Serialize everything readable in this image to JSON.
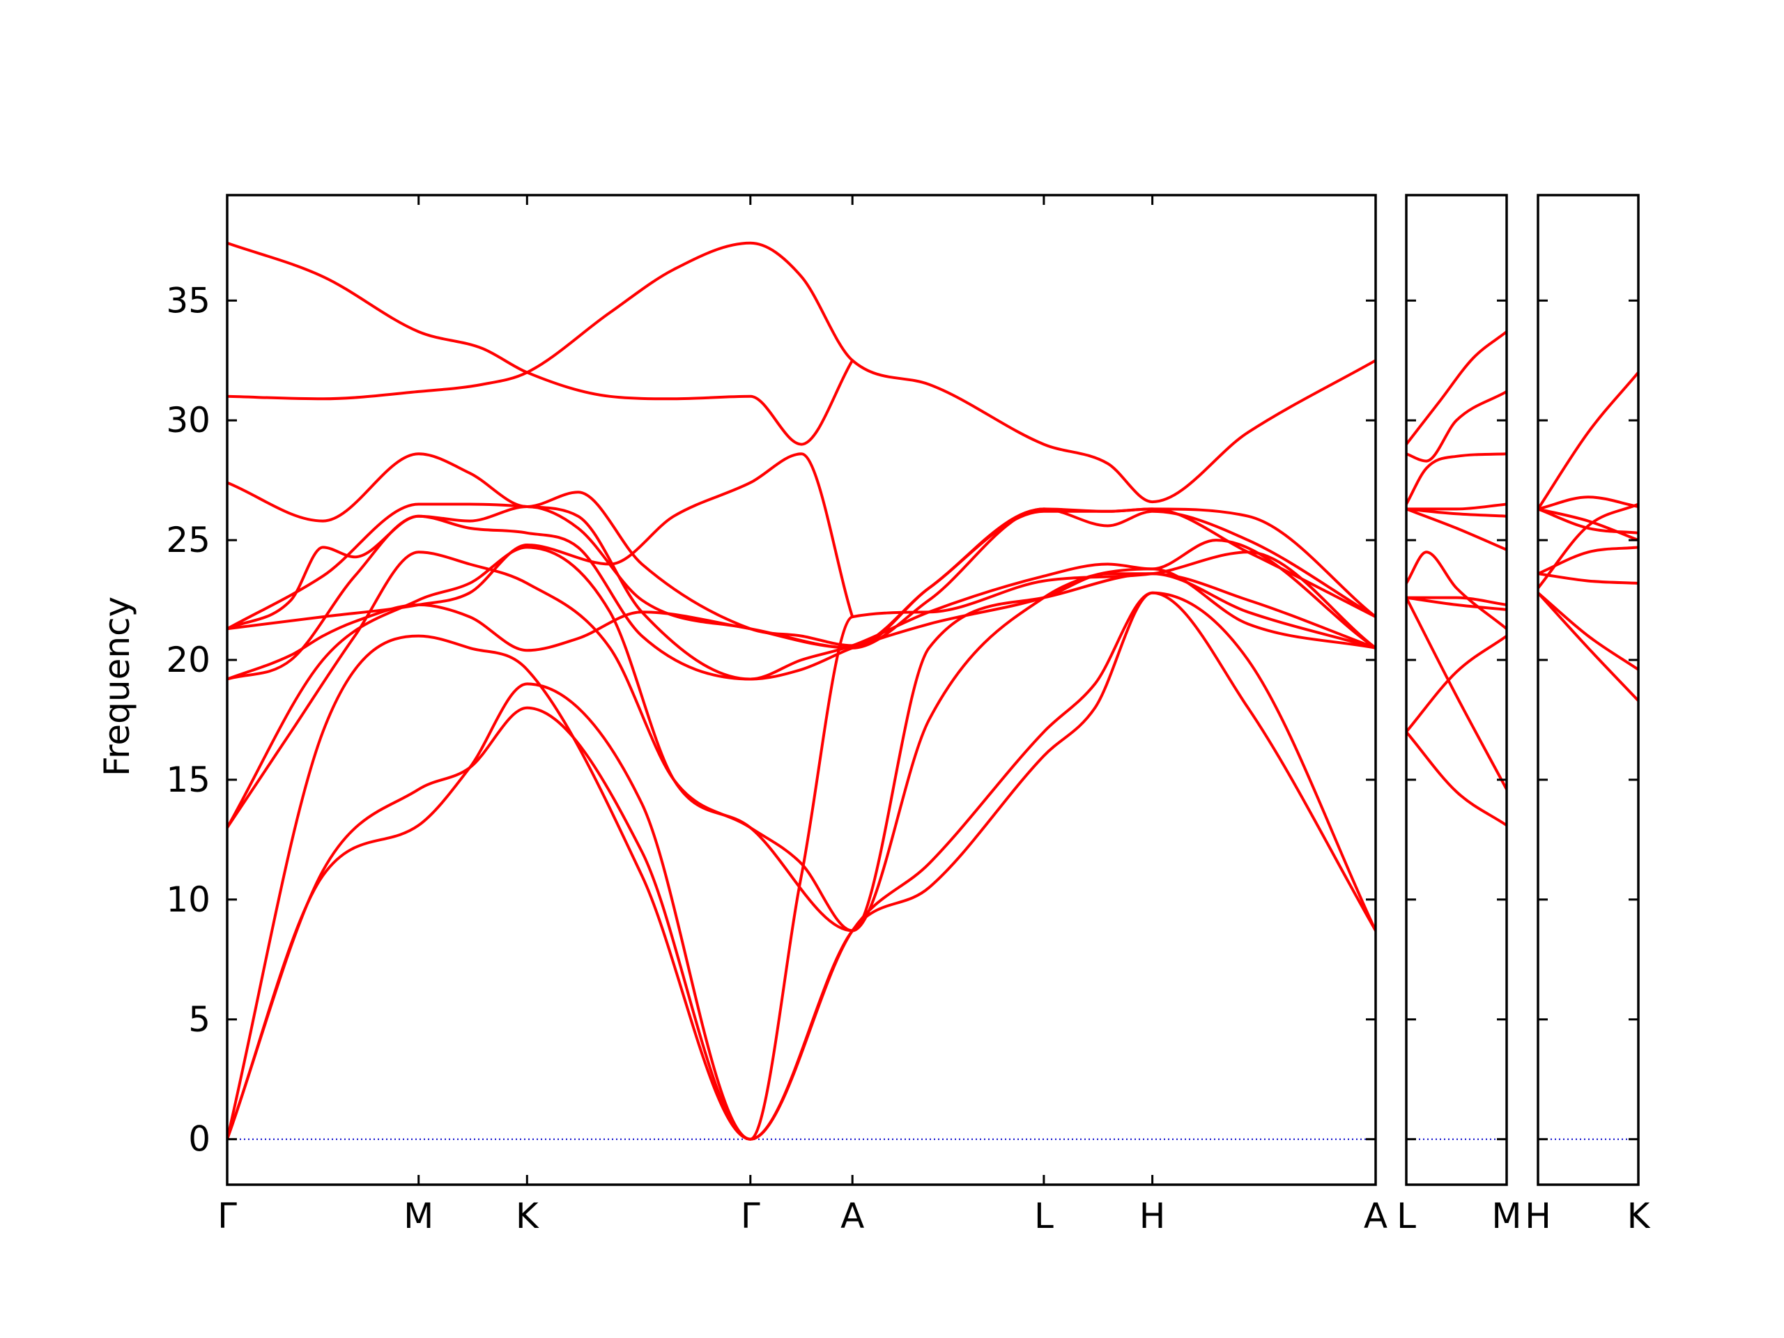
{
  "chart_data": {
    "type": "line",
    "title": "",
    "xlabel": "",
    "ylabel": "Frequency",
    "ylim": [
      -1.9,
      39.4
    ],
    "yticks": [
      0,
      5,
      10,
      15,
      20,
      25,
      30,
      35
    ],
    "grid": false,
    "legend": "none",
    "line_color": "#ff0000",
    "zero_line_color": "#0000cc",
    "panels": [
      {
        "name": "main",
        "x_range": [
          0,
          1.8
        ],
        "kpoints": [
          {
            "label": "Γ",
            "x": 0.0
          },
          {
            "label": "M",
            "x": 0.3
          },
          {
            "label": "K",
            "x": 0.47
          },
          {
            "label": "Γ",
            "x": 0.82
          },
          {
            "label": "A",
            "x": 0.98
          },
          {
            "label": "L",
            "x": 1.28
          },
          {
            "label": "H",
            "x": 1.45
          },
          {
            "label": "A",
            "x": 1.8
          }
        ],
        "bands": [
          {
            "x": [
              0,
              0.15,
              0.3,
              0.38,
              0.47,
              0.65,
              0.82,
              0.98,
              1.1,
              1.28,
              1.36,
              1.45,
              1.6,
              1.8
            ],
            "y": [
              0,
              11.0,
              13.1,
              15.5,
              19.0,
              14.0,
              0,
              8.7,
              10.5,
              16.0,
              18.0,
              22.8,
              18.0,
              8.7
            ]
          },
          {
            "x": [
              0,
              0.15,
              0.3,
              0.38,
              0.47,
              0.65,
              0.82,
              0.98,
              1.1,
              1.28,
              1.36,
              1.45,
              1.6,
              1.8
            ],
            "y": [
              0,
              11.2,
              14.6,
              15.5,
              18.0,
              12.0,
              0,
              8.7,
              11.5,
              17.0,
              19.0,
              22.8,
              20.0,
              8.7
            ]
          },
          {
            "x": [
              0,
              0.15,
              0.3,
              0.38,
              0.47,
              0.65,
              0.82,
              0.9,
              0.98,
              1.1,
              1.28,
              1.45,
              1.6,
              1.8
            ],
            "y": [
              0,
              17.0,
              21.0,
              20.5,
              19.6,
              11.0,
              0,
              11.0,
              21.8,
              22.0,
              23.3,
              23.6,
              24.5,
              20.5
            ]
          },
          {
            "x": [
              0,
              0.15,
              0.3,
              0.38,
              0.47,
              0.6,
              0.7,
              0.82,
              0.98,
              1.1,
              1.28,
              1.45,
              1.6,
              1.8
            ],
            "y": [
              13.0,
              20.0,
              22.5,
              23.2,
              24.7,
              22.0,
              15.0,
              13.0,
              8.7,
              17.5,
              22.6,
              23.8,
              21.5,
              20.5
            ]
          },
          {
            "x": [
              0,
              0.1,
              0.2,
              0.3,
              0.38,
              0.47,
              0.6,
              0.7,
              0.82,
              0.9,
              0.98,
              1.1,
              1.28,
              1.45,
              1.6,
              1.8
            ],
            "y": [
              13.0,
              17.0,
              21.0,
              24.5,
              24.0,
              23.2,
              20.5,
              15.0,
              13.0,
              11.5,
              8.7,
              20.5,
              22.6,
              23.6,
              22.0,
              20.5
            ]
          },
          {
            "x": [
              0,
              0.1,
              0.15,
              0.2,
              0.3,
              0.38,
              0.47,
              0.55,
              0.65,
              0.82,
              0.98,
              1.1,
              1.28,
              1.38,
              1.45,
              1.6,
              1.8
            ],
            "y": [
              19.2,
              20.2,
              21.0,
              21.6,
              22.3,
              21.8,
              20.4,
              20.9,
              22.0,
              21.3,
              20.5,
              23.0,
              26.2,
              26.2,
              26.3,
              24.5,
              21.8
            ]
          },
          {
            "x": [
              0,
              0.1,
              0.2,
              0.3,
              0.38,
              0.47,
              0.55,
              0.65,
              0.82,
              0.9,
              0.98,
              1.1,
              1.28,
              1.38,
              1.45,
              1.6,
              1.8
            ],
            "y": [
              19.2,
              20.0,
              23.5,
              26.0,
              25.5,
              25.3,
              24.7,
              21.0,
              19.2,
              19.6,
              20.5,
              21.5,
              22.6,
              23.6,
              23.6,
              22.5,
              20.5
            ]
          },
          {
            "x": [
              0,
              0.1,
              0.15,
              0.2,
              0.3,
              0.38,
              0.47,
              0.55,
              0.65,
              0.82,
              0.98,
              1.1,
              1.28,
              1.38,
              1.45,
              1.6,
              1.8
            ],
            "y": [
              21.3,
              22.5,
              24.7,
              24.3,
              26.0,
              25.8,
              26.4,
              25.5,
              22.5,
              21.3,
              20.5,
              22.5,
              26.3,
              25.6,
              26.2,
              25.0,
              21.8
            ]
          },
          {
            "x": [
              0,
              0.15,
              0.3,
              0.38,
              0.47,
              0.55,
              0.65,
              0.82,
              0.9,
              0.98,
              1.1,
              1.28,
              1.38,
              1.45,
              1.55,
              1.8
            ],
            "y": [
              21.3,
              23.5,
              26.5,
              26.5,
              26.4,
              26.0,
              22.0,
              19.2,
              20.0,
              20.6,
              22.0,
              23.5,
              24.0,
              23.8,
              25.0,
              20.5
            ]
          },
          {
            "x": [
              0,
              0.15,
              0.3,
              0.38,
              0.47,
              0.55,
              0.65,
              0.82,
              0.9,
              0.98,
              1.1,
              1.28,
              1.38,
              1.45,
              1.6,
              1.8
            ],
            "y": [
              27.4,
              25.8,
              28.6,
              27.8,
              26.4,
              27.0,
              24.0,
              21.3,
              21.0,
              20.6,
              23.0,
              26.3,
              26.2,
              26.3,
              26.0,
              21.8
            ]
          },
          {
            "x": [
              0,
              0.15,
              0.3,
              0.38,
              0.47,
              0.6,
              0.7,
              0.82,
              0.9,
              0.98
            ],
            "y": [
              21.3,
              21.8,
              22.3,
              22.8,
              24.8,
              24.0,
              26.0,
              27.4,
              28.6,
              21.8
            ]
          },
          {
            "x": [
              0,
              0.15,
              0.3,
              0.4,
              0.47,
              0.6,
              0.7,
              0.82,
              0.9,
              0.98,
              1.1,
              1.28,
              1.38,
              1.45,
              1.6,
              1.8
            ],
            "y": [
              31.0,
              30.9,
              31.2,
              31.5,
              32.0,
              34.5,
              36.3,
              37.4,
              36.0,
              32.5,
              31.5,
              29.0,
              28.2,
              26.6,
              29.5,
              32.5
            ]
          },
          {
            "x": [
              0,
              0.15,
              0.3,
              0.4,
              0.47,
              0.6,
              0.7,
              0.82,
              0.9,
              0.98
            ],
            "y": [
              37.4,
              36.0,
              33.7,
              33.0,
              32.0,
              31.0,
              30.9,
              31.0,
              29.0,
              32.5
            ]
          }
        ]
      },
      {
        "name": "L-M",
        "x_range": [
          0,
          0.3
        ],
        "kpoints": [
          {
            "label": "L",
            "x": 0.0
          },
          {
            "label": "M",
            "x": 0.3
          }
        ],
        "bands": [
          {
            "x": [
              0,
              0.15,
              0.3
            ],
            "y": [
              17.0,
              14.5,
              13.1
            ]
          },
          {
            "x": [
              0,
              0.15,
              0.3
            ],
            "y": [
              17.0,
              19.5,
              21.0
            ]
          },
          {
            "x": [
              0,
              0.15,
              0.3
            ],
            "y": [
              22.6,
              18.5,
              14.6
            ]
          },
          {
            "x": [
              0,
              0.06,
              0.15,
              0.3
            ],
            "y": [
              23.2,
              24.5,
              23.0,
              21.3
            ]
          },
          {
            "x": [
              0,
              0.15,
              0.3
            ],
            "y": [
              22.6,
              22.6,
              22.3
            ]
          },
          {
            "x": [
              0,
              0.15,
              0.3
            ],
            "y": [
              22.6,
              22.3,
              22.1
            ]
          },
          {
            "x": [
              0,
              0.15,
              0.3
            ],
            "y": [
              26.3,
              25.5,
              24.6
            ]
          },
          {
            "x": [
              0,
              0.15,
              0.3
            ],
            "y": [
              26.3,
              26.1,
              26.0
            ]
          },
          {
            "x": [
              0,
              0.15,
              0.3
            ],
            "y": [
              26.3,
              26.3,
              26.5
            ]
          },
          {
            "x": [
              0,
              0.06,
              0.15,
              0.3
            ],
            "y": [
              26.5,
              28.0,
              28.5,
              28.6
            ]
          },
          {
            "x": [
              0,
              0.06,
              0.15,
              0.3
            ],
            "y": [
              28.6,
              28.3,
              30.0,
              31.2
            ]
          },
          {
            "x": [
              0,
              0.1,
              0.2,
              0.3
            ],
            "y": [
              29.0,
              30.8,
              32.6,
              33.7
            ]
          }
        ]
      },
      {
        "name": "H-K",
        "x_range": [
          0,
          0.3
        ],
        "kpoints": [
          {
            "label": "H",
            "x": 0.0
          },
          {
            "label": "K",
            "x": 0.3
          }
        ],
        "bands": [
          {
            "x": [
              0,
              0.15,
              0.3
            ],
            "y": [
              22.8,
              20.5,
              18.3
            ]
          },
          {
            "x": [
              0,
              0.15,
              0.3
            ],
            "y": [
              22.8,
              21.0,
              19.6
            ]
          },
          {
            "x": [
              0,
              0.15,
              0.3
            ],
            "y": [
              23.6,
              23.3,
              23.2
            ]
          },
          {
            "x": [
              0,
              0.15,
              0.3
            ],
            "y": [
              23.6,
              24.5,
              24.7
            ]
          },
          {
            "x": [
              0,
              0.15,
              0.3
            ],
            "y": [
              23.0,
              25.6,
              26.5
            ]
          },
          {
            "x": [
              0,
              0.15,
              0.3
            ],
            "y": [
              26.3,
              25.5,
              25.3
            ]
          },
          {
            "x": [
              0,
              0.15,
              0.3
            ],
            "y": [
              26.3,
              25.8,
              25.0
            ]
          },
          {
            "x": [
              0,
              0.15,
              0.3
            ],
            "y": [
              26.3,
              26.8,
              26.4
            ]
          },
          {
            "x": [
              0,
              0.15,
              0.3
            ],
            "y": [
              26.3,
              29.5,
              32.0
            ]
          }
        ]
      }
    ]
  }
}
